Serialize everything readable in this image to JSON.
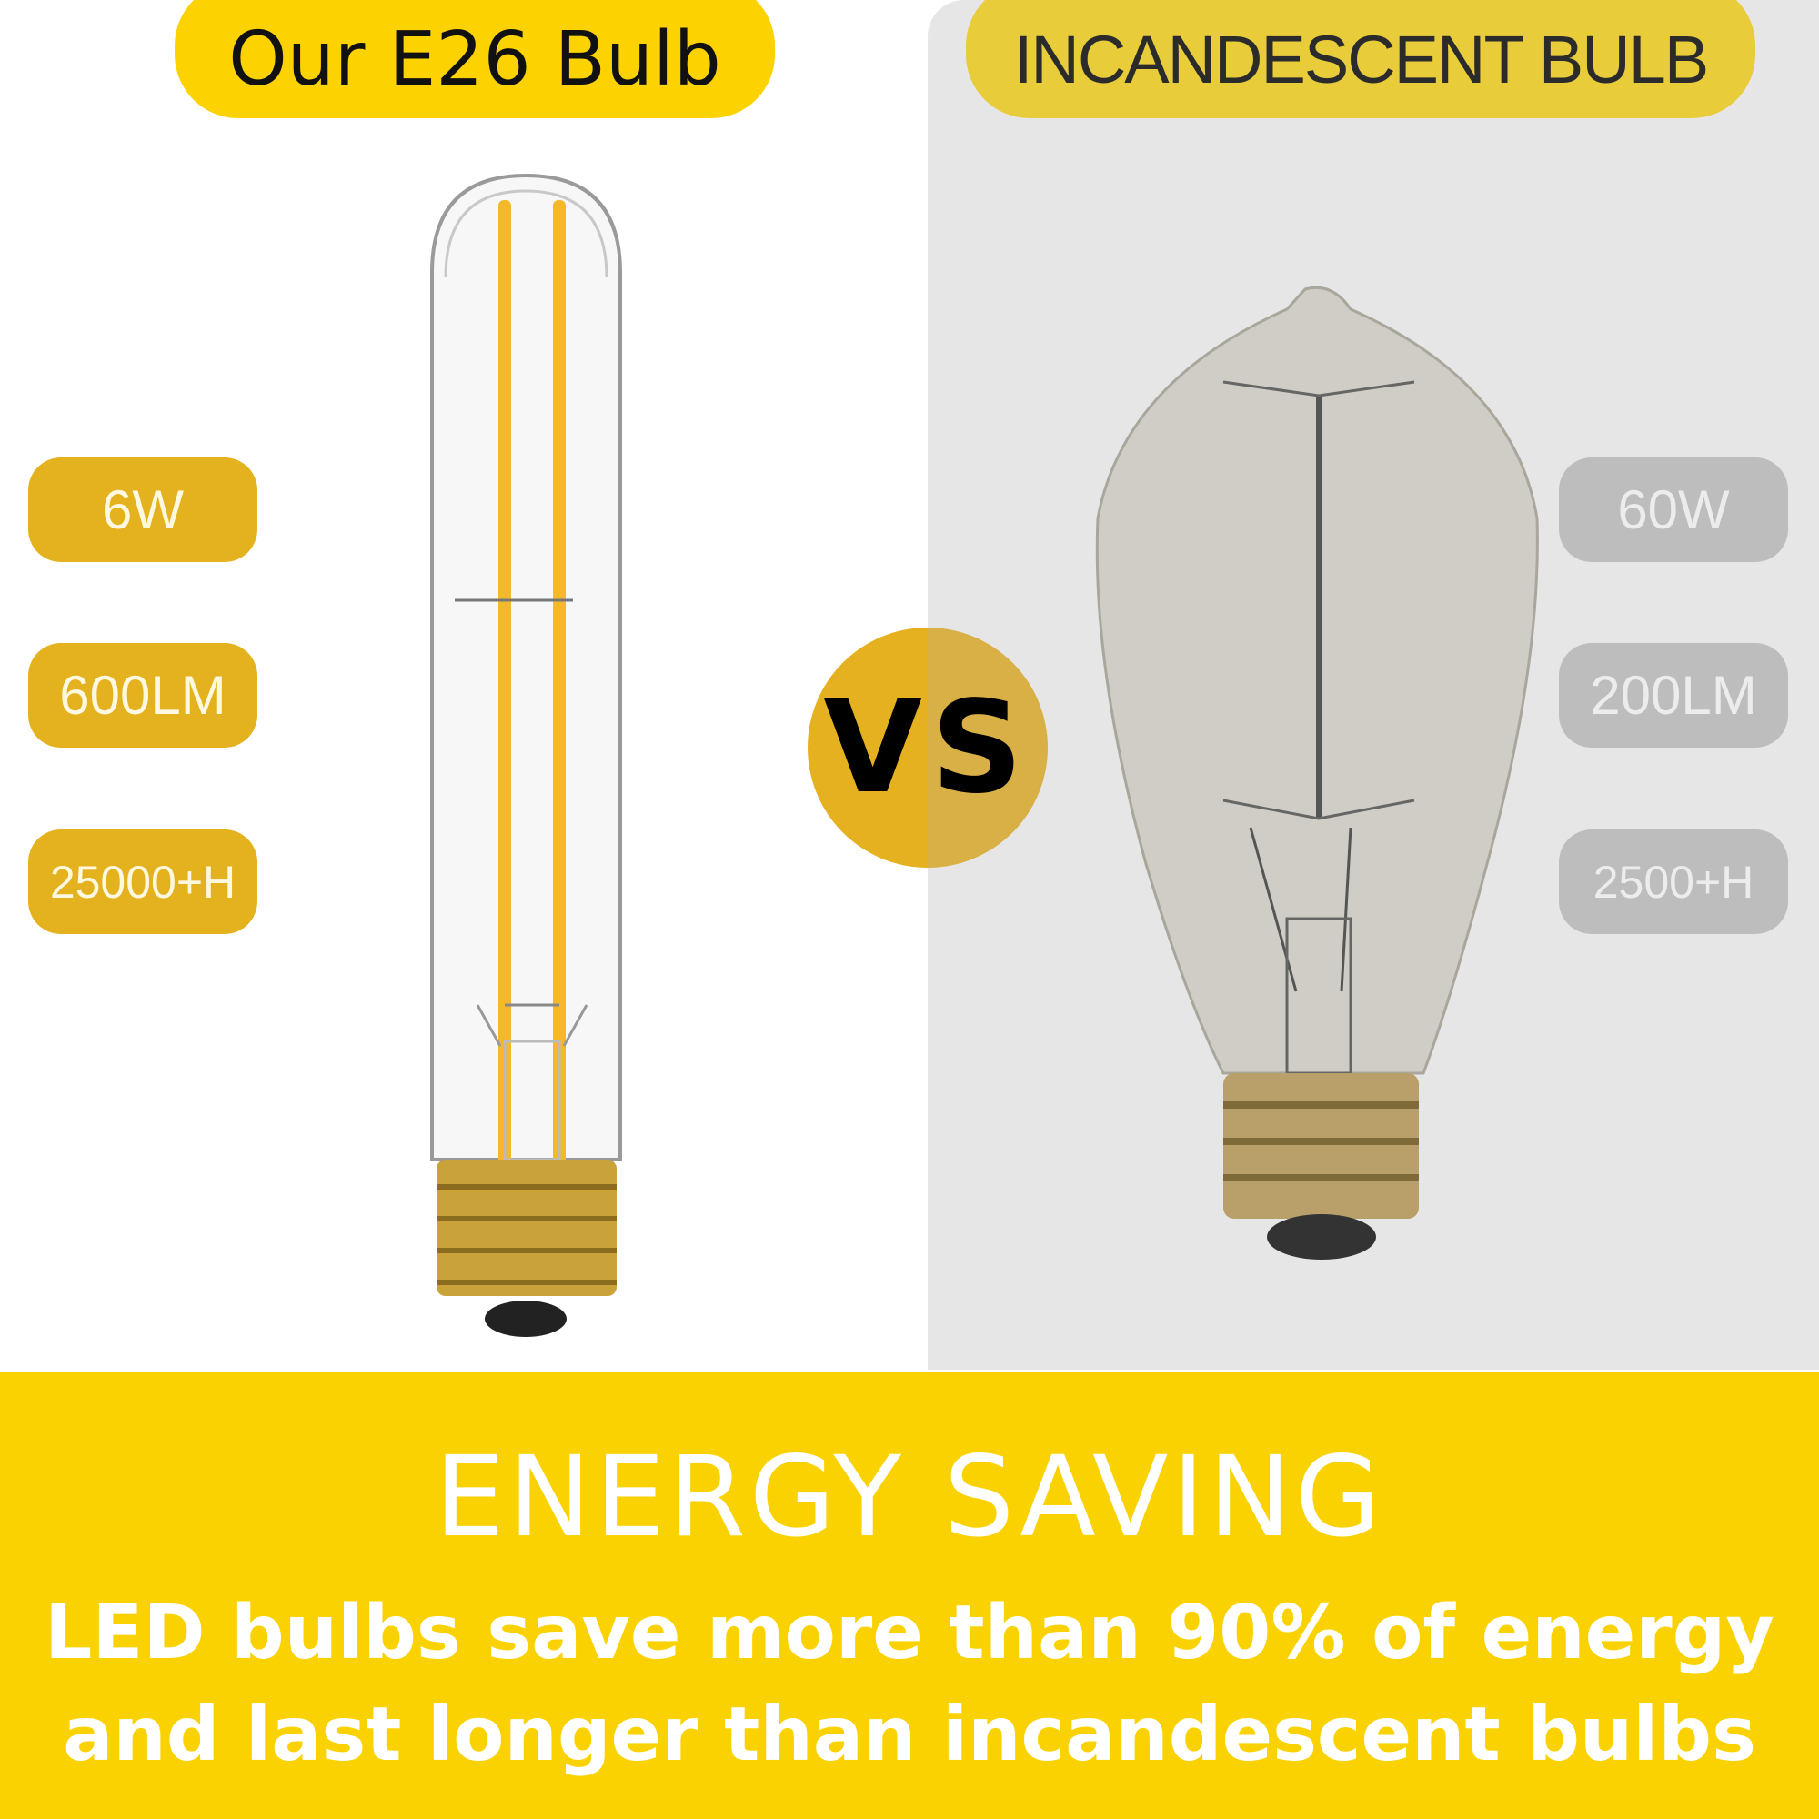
{
  "left": {
    "title": "Our E26 Bulb",
    "specs": [
      "6W",
      "600LM",
      "25000+H"
    ]
  },
  "right": {
    "title": "INCANDESCENT BULB",
    "specs": [
      "60W",
      "200LM",
      "2500+H"
    ]
  },
  "vs_label": "VS",
  "footer": {
    "title": "ENERGY SAVING",
    "line1": "LED bulbs save more than 90% of energy",
    "line2": "and last longer than incandescent bulbs"
  },
  "colors": {
    "brand_yellow": "#fad201",
    "led_badge": "#e4b21e",
    "incandescent_badge": "#bdbdbd",
    "panel_gray": "#e6e6e6"
  }
}
